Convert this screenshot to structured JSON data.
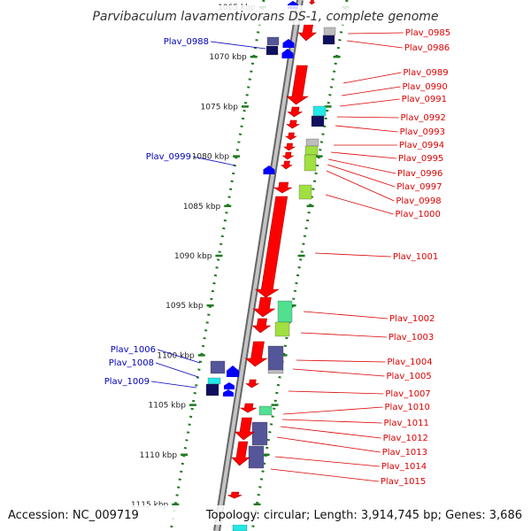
{
  "title": "Parvibaculum lavamentivorans DS-1, complete genome",
  "footer": {
    "accession": "Accession: NC_009719",
    "topology": "Topology: circular; Length: 3,914,745 bp; Genes: 3,686"
  },
  "colors": {
    "forward_label": "#dd0000",
    "reverse_label": "#0000bb",
    "backbone": "#8a8a8a",
    "ticks": "#1e7a1e",
    "cds_red": "#ff0000",
    "cds_blue": "#0000ff",
    "cog_navy": "#10105e",
    "cog_purple": "#55559a",
    "cog_cyan": "#22e8e8",
    "cog_green": "#50e090",
    "cog_lime": "#a0e040",
    "cog_grey": "#bdbdbd"
  },
  "scale": {
    "ticks_kbp": [
      1065,
      1070,
      1075,
      1080,
      1085,
      1090,
      1095,
      1100,
      1105,
      1110,
      1115
    ],
    "unit": "kbp"
  },
  "genes_forward": [
    {
      "name": "Plav_0985"
    },
    {
      "name": "Plav_0986"
    },
    {
      "name": "Plav_0989"
    },
    {
      "name": "Plav_0990"
    },
    {
      "name": "Plav_0991"
    },
    {
      "name": "Plav_0992"
    },
    {
      "name": "Plav_0993"
    },
    {
      "name": "Plav_0994"
    },
    {
      "name": "Plav_0995"
    },
    {
      "name": "Plav_0996"
    },
    {
      "name": "Plav_0997"
    },
    {
      "name": "Plav_0998"
    },
    {
      "name": "Plav_1000"
    },
    {
      "name": "Plav_1001"
    },
    {
      "name": "Plav_1002"
    },
    {
      "name": "Plav_1003"
    },
    {
      "name": "Plav_1004"
    },
    {
      "name": "Plav_1005"
    },
    {
      "name": "Plav_1007"
    },
    {
      "name": "Plav_1010"
    },
    {
      "name": "Plav_1011"
    },
    {
      "name": "Plav_1012"
    },
    {
      "name": "Plav_1013"
    },
    {
      "name": "Plav_1014"
    },
    {
      "name": "Plav_1015"
    }
  ],
  "genes_reverse": [
    {
      "name": "Plav_0988"
    },
    {
      "name": "Plav_0999"
    },
    {
      "name": "Plav_1006"
    },
    {
      "name": "Plav_1008"
    },
    {
      "name": "Plav_1009"
    }
  ]
}
